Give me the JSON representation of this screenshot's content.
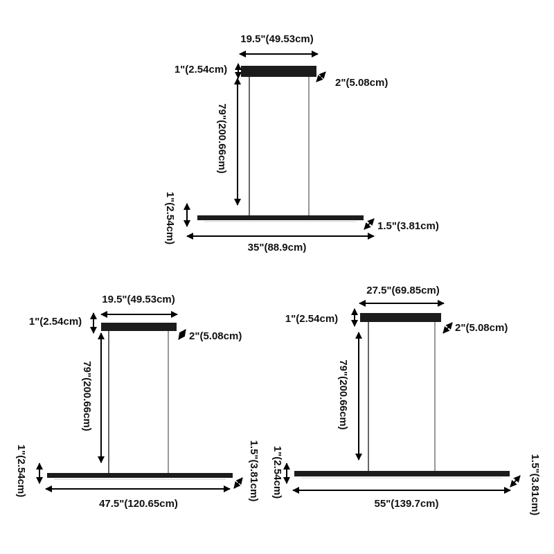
{
  "colors": {
    "lamp": "#1c1c1c",
    "wire": "#777777",
    "arrow": "#000000",
    "text": "#111111",
    "background": "#ffffff"
  },
  "lamps": [
    {
      "canopy_width": "19.5\"(49.53cm)",
      "canopy_height": "1\"(2.54cm)",
      "canopy_depth": "2\"(5.08cm)",
      "hanging_height": "79\"(200.66cm)",
      "bar_height": "1\"(2.54cm)",
      "bar_depth": "1.5\"(3.81cm)",
      "bar_length": "35\"(88.9cm)"
    },
    {
      "canopy_width": "19.5\"(49.53cm)",
      "canopy_height": "1\"(2.54cm)",
      "canopy_depth": "2\"(5.08cm)",
      "hanging_height": "79\"(200.66cm)",
      "bar_height": "1\"(2.54cm)",
      "bar_depth": "1.5\"(3.81cm)",
      "bar_length": "47.5\"(120.65cm)"
    },
    {
      "canopy_width": "27.5\"(69.85cm)",
      "canopy_height": "1\"(2.54cm)",
      "canopy_depth": "2\"(5.08cm)",
      "hanging_height": "79\"(200.66cm)",
      "bar_height": "1\"(2.54cm)",
      "bar_depth": "1.5\"(3.81cm)",
      "bar_length": "55\"(139.7cm)"
    }
  ]
}
